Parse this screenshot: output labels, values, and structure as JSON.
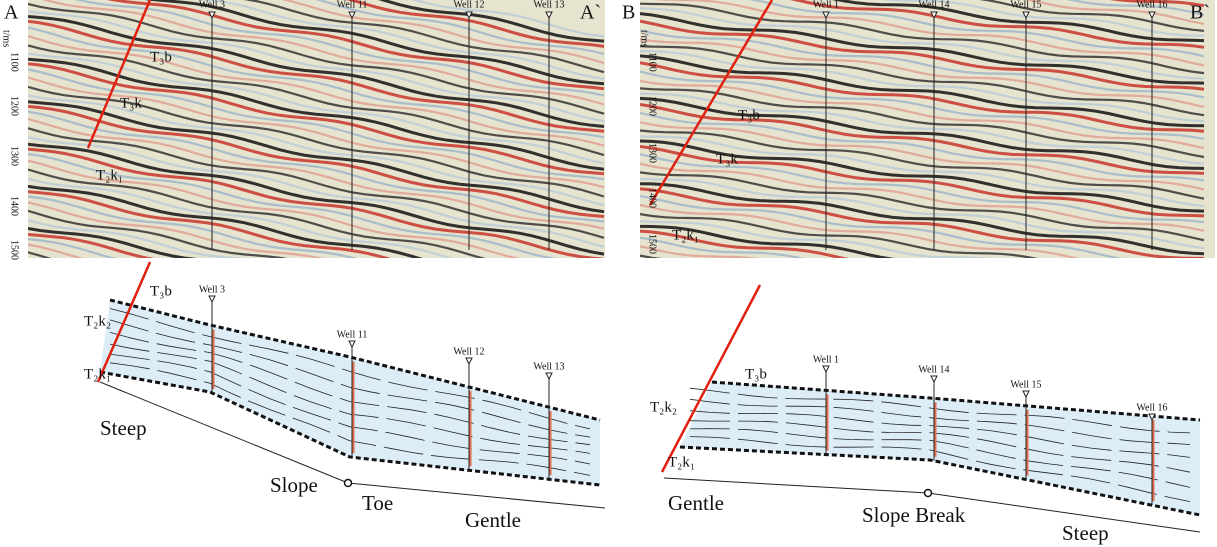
{
  "panels": [
    {
      "seismic": {
        "start_label": "A",
        "end_label": "A`",
        "time_axis": {
          "unit": "t/ms",
          "ticks": [
            1100,
            1200,
            1300,
            1400,
            1500
          ]
        },
        "wells": [
          "Well 3",
          "Well 11",
          "Well 12",
          "Well 13"
        ],
        "horizons": [
          "T₃b",
          "T₃k",
          "T₂k₁"
        ]
      },
      "model": {
        "wells": [
          "Well 3",
          "Well 11",
          "Well 12",
          "Well 13"
        ],
        "horizons": [
          "T₃b",
          "T₂k₂",
          "T₂k₁"
        ],
        "annotations": [
          "Steep",
          "Slope",
          "Toe",
          "Gentle"
        ]
      }
    },
    {
      "seismic": {
        "start_label": "B",
        "end_label": "B`",
        "time_axis": {
          "unit": "t/ms",
          "ticks": [
            1100,
            1200,
            1300,
            1400,
            1500
          ]
        },
        "wells": [
          "Well 1",
          "Well 14",
          "Well 15",
          "Well 16"
        ],
        "horizons": [
          "T₃b",
          "T₃k",
          "T₂k₁"
        ]
      },
      "model": {
        "wells": [
          "Well 1",
          "Well 14",
          "Well 15",
          "Well 16"
        ],
        "horizons": [
          "T₃b",
          "T₂k₂",
          "T₂k₁"
        ],
        "annotations": [
          "Gentle",
          "Slope Break",
          "Steep"
        ]
      }
    }
  ]
}
